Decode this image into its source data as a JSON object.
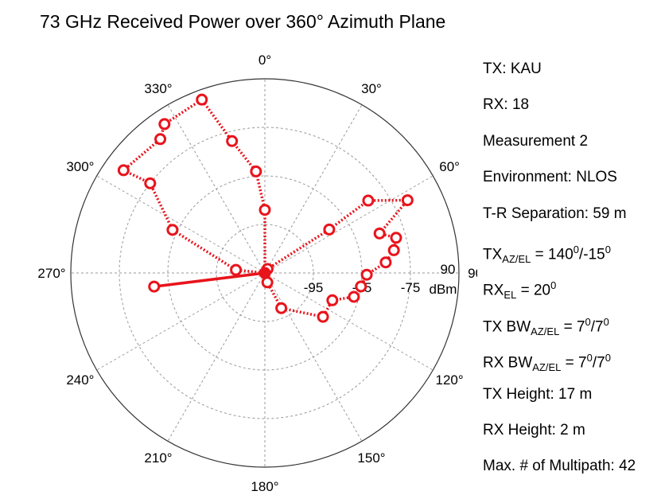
{
  "chart_data": {
    "type": "polar",
    "title": "73 GHz Received Power over 360° Azimuth Plane",
    "r_unit": "dBm",
    "r_range": [
      -105,
      -65
    ],
    "r_ticks": [
      {
        "value": -95,
        "label": "-95"
      },
      {
        "value": -85,
        "label": "-85"
      },
      {
        "value": -75,
        "label": "-75"
      }
    ],
    "outer_label": "90",
    "angle_labels": [
      "0°",
      "30°",
      "60°",
      "90°",
      "120°",
      "150°",
      "180°",
      "210°",
      "240°",
      "270°",
      "300°",
      "330°"
    ],
    "series": [
      {
        "color": "#e8141c",
        "style": "dotted-markers",
        "points": [
          {
            "azimuth": 0,
            "power": -105
          },
          {
            "azimuth": 15,
            "power": -105
          },
          {
            "azimuth": 31,
            "power": -105
          },
          {
            "azimuth": 34,
            "power": -104
          },
          {
            "azimuth": 56,
            "power": -89
          },
          {
            "azimuth": 55,
            "power": -79
          },
          {
            "azimuth": 63,
            "power": -72
          },
          {
            "azimuth": 71,
            "power": -80
          },
          {
            "azimuth": 75,
            "power": -77
          },
          {
            "azimuth": 80,
            "power": -78
          },
          {
            "azimuth": 85,
            "power": -80
          },
          {
            "azimuth": 91,
            "power": -84
          },
          {
            "azimuth": 98,
            "power": -85
          },
          {
            "azimuth": 105,
            "power": -86
          },
          {
            "azimuth": 112,
            "power": -90
          },
          {
            "azimuth": 127,
            "power": -90
          },
          {
            "azimuth": 155,
            "power": -97
          },
          {
            "azimuth": 165,
            "power": -103
          },
          {
            "azimuth": 180,
            "power": -105
          },
          {
            "azimuth": 180,
            "power": -105
          },
          {
            "azimuth": 195,
            "power": -105
          },
          {
            "azimuth": 210,
            "power": -105
          },
          {
            "azimuth": 225,
            "power": -105
          },
          {
            "azimuth": 240,
            "power": -105
          },
          {
            "azimuth": 255,
            "power": -105
          },
          {
            "azimuth": 268,
            "power": -105
          },
          {
            "azimuth": 276,
            "power": -99
          },
          {
            "azimuth": 295,
            "power": -84
          },
          {
            "azimuth": 308,
            "power": -75
          },
          {
            "azimuth": 306,
            "power": -69
          },
          {
            "azimuth": 322,
            "power": -70
          },
          {
            "azimuth": 326,
            "power": -68
          },
          {
            "azimuth": 340,
            "power": -67
          },
          {
            "azimuth": 346,
            "power": -77
          },
          {
            "azimuth": 355,
            "power": -84
          },
          {
            "azimuth": 0,
            "power": -92
          },
          {
            "azimuth": 0,
            "power": -105
          }
        ]
      },
      {
        "color": "#e8141c",
        "style": "solid-marker",
        "points": [
          {
            "azimuth": 263,
            "power": -105
          },
          {
            "azimuth": 263,
            "power": -82
          }
        ]
      }
    ]
  },
  "legend": {
    "tx": "TX: KAU",
    "rx": "RX: 18",
    "measurement": "Measurement 2",
    "environment": "Environment: NLOS",
    "separation": "T-R Separation: 59 m",
    "tx_az_el": {
      "prefix": "TX",
      "sub": "AZ/EL",
      "eq": " = 140",
      "sup1": "0",
      "mid": "/-15",
      "sup2": "0"
    },
    "rx_el": {
      "prefix": "RX",
      "sub": "EL",
      "eq": " = 20",
      "sup1": "0"
    },
    "tx_bw": {
      "prefix": "TX BW",
      "sub": "AZ/EL",
      "eq": " = 7",
      "sup1": "0",
      "mid": "/7",
      "sup2": "0"
    },
    "rx_bw": {
      "prefix": "RX BW",
      "sub": "AZ/EL",
      "eq": " = 7",
      "sup1": "0",
      "mid": "/7",
      "sup2": "0"
    },
    "tx_height": "TX Height: 17 m",
    "rx_height": "RX Height: 2 m",
    "multipath": "Max. # of Multipath: 42"
  }
}
